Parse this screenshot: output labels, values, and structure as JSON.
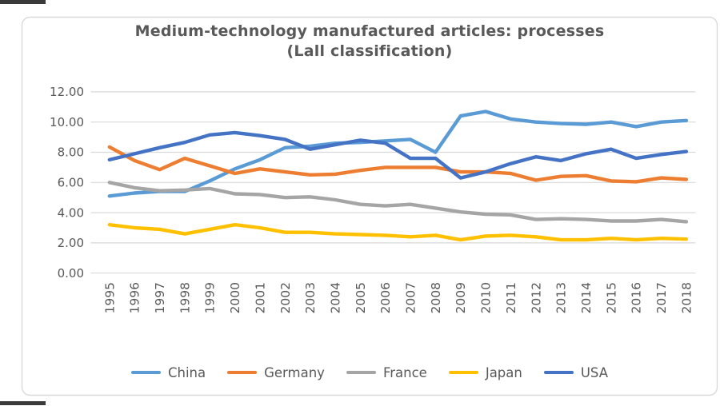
{
  "title": {
    "line1": "Medium-technology manufactured articles: processes",
    "line2": "(Lall classification)"
  },
  "chart_data": {
    "type": "line",
    "x": [
      "1995",
      "1996",
      "1997",
      "1998",
      "1999",
      "2000",
      "2001",
      "2002",
      "2003",
      "2004",
      "2005",
      "2006",
      "2007",
      "2008",
      "2009",
      "2010",
      "2011",
      "2012",
      "2013",
      "2014",
      "2015",
      "2016",
      "2017",
      "2018"
    ],
    "series": [
      {
        "name": "China",
        "color": "#5B9BD5",
        "values": [
          5.1,
          5.3,
          5.4,
          5.4,
          6.1,
          6.9,
          7.5,
          8.3,
          8.4,
          8.6,
          8.65,
          8.75,
          8.85,
          8.0,
          10.4,
          10.7,
          10.2,
          10.0,
          9.9,
          9.85,
          10.0,
          9.7,
          10.0,
          10.1
        ]
      },
      {
        "name": "Germany",
        "color": "#ED7D31",
        "values": [
          8.35,
          7.45,
          6.85,
          7.6,
          7.1,
          6.6,
          6.9,
          6.7,
          6.5,
          6.55,
          6.8,
          7.0,
          7.0,
          7.0,
          6.7,
          6.7,
          6.6,
          6.15,
          6.4,
          6.45,
          6.1,
          6.05,
          6.3,
          6.2
        ]
      },
      {
        "name": "France",
        "color": "#A5A5A5",
        "values": [
          6.0,
          5.65,
          5.45,
          5.5,
          5.6,
          5.25,
          5.2,
          5.0,
          5.05,
          4.85,
          4.55,
          4.45,
          4.55,
          4.3,
          4.05,
          3.9,
          3.85,
          3.55,
          3.6,
          3.55,
          3.45,
          3.45,
          3.55,
          3.4
        ]
      },
      {
        "name": "Japan",
        "color": "#FFC000",
        "values": [
          3.2,
          3.0,
          2.9,
          2.6,
          2.9,
          3.2,
          3.0,
          2.7,
          2.7,
          2.6,
          2.55,
          2.5,
          2.4,
          2.5,
          2.2,
          2.45,
          2.5,
          2.4,
          2.2,
          2.2,
          2.3,
          2.2,
          2.3,
          2.25
        ]
      },
      {
        "name": "USA",
        "color": "#4472C4",
        "values": [
          7.5,
          7.9,
          8.3,
          8.65,
          9.15,
          9.3,
          9.1,
          8.85,
          8.2,
          8.5,
          8.8,
          8.6,
          7.6,
          7.6,
          6.3,
          6.7,
          7.25,
          7.7,
          7.45,
          7.9,
          8.2,
          7.6,
          7.85,
          8.05
        ]
      }
    ],
    "y_ticks": [
      "12.00",
      "10.00",
      "8.00",
      "6.00",
      "4.00",
      "2.00",
      "0.00"
    ],
    "ylim": [
      0,
      12
    ],
    "grid": true,
    "legend_position": "bottom",
    "gridline_color": "#D9D9D9",
    "border_color": "#D9D9D9",
    "axis_label_color": "#595959",
    "title_color": "#595959"
  }
}
